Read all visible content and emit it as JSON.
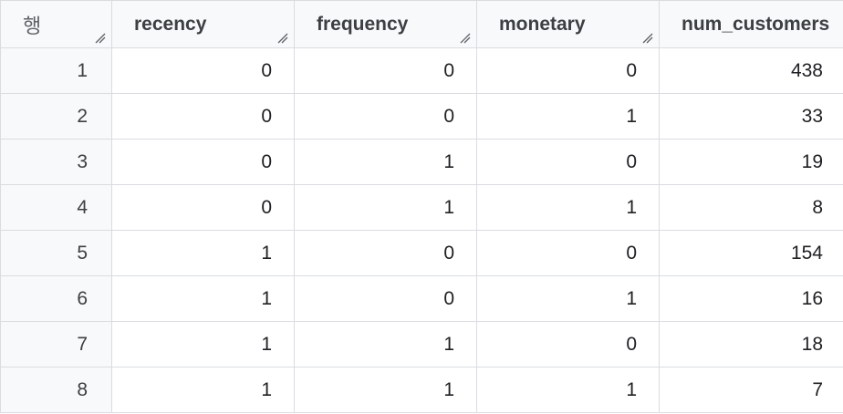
{
  "table": {
    "row_header_label": "행",
    "columns": [
      "recency",
      "frequency",
      "monetary",
      "num_customers"
    ],
    "rows": [
      {
        "row": "1",
        "cells": [
          "0",
          "0",
          "0",
          "438"
        ]
      },
      {
        "row": "2",
        "cells": [
          "0",
          "0",
          "1",
          "33"
        ]
      },
      {
        "row": "3",
        "cells": [
          "0",
          "1",
          "0",
          "19"
        ]
      },
      {
        "row": "4",
        "cells": [
          "0",
          "1",
          "1",
          "8"
        ]
      },
      {
        "row": "5",
        "cells": [
          "1",
          "0",
          "0",
          "154"
        ]
      },
      {
        "row": "6",
        "cells": [
          "1",
          "0",
          "1",
          "16"
        ]
      },
      {
        "row": "7",
        "cells": [
          "1",
          "1",
          "0",
          "18"
        ]
      },
      {
        "row": "8",
        "cells": [
          "1",
          "1",
          "1",
          "7"
        ]
      }
    ]
  },
  "colors": {
    "accent": "#1a73e8",
    "header_bg": "#f8f9fa",
    "grid_line": "#dadce0"
  }
}
